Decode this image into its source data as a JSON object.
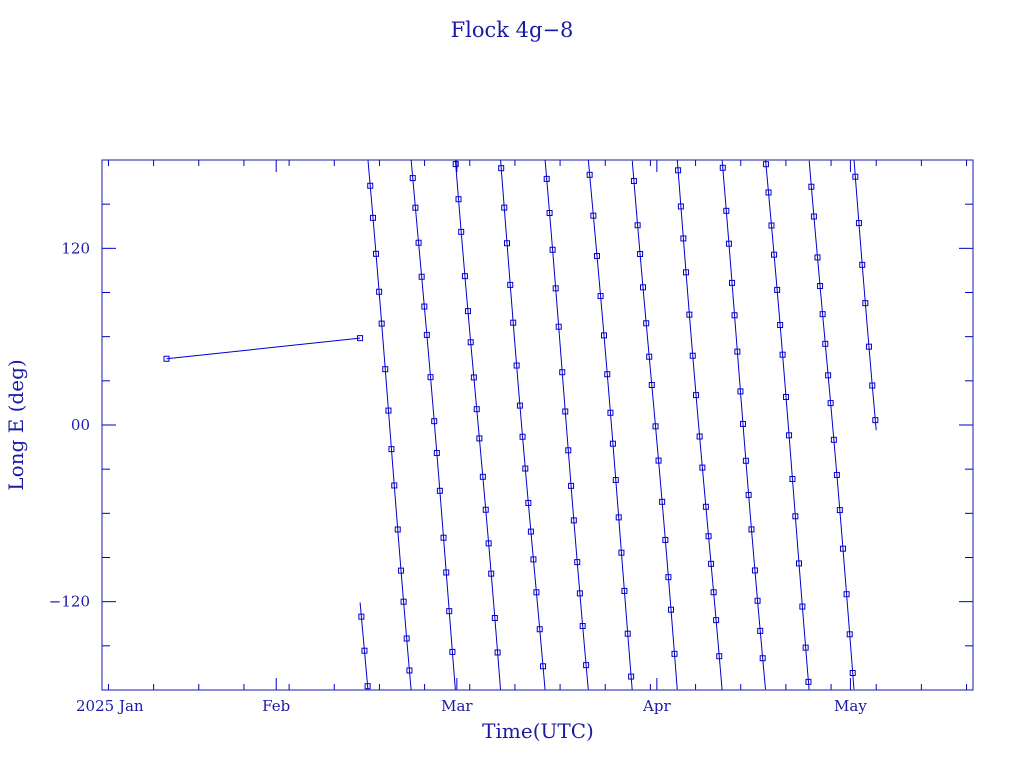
{
  "chart_data": {
    "type": "line",
    "title": "Flock 4g−8",
    "xlabel": "Time(UTC)",
    "ylabel": "Long E (deg)",
    "color": "#0000cc",
    "x_range": [
      "2025-01-05",
      "2025-05-20"
    ],
    "ylim": [
      -180,
      180
    ],
    "x_ticks": [
      {
        "date": "2025-01-01",
        "label": "2025 Jan"
      },
      {
        "date": "2025-02-01",
        "label": "Feb"
      },
      {
        "date": "2025-03-01",
        "label": "Mar"
      },
      {
        "date": "2025-04-01",
        "label": "Apr"
      },
      {
        "date": "2025-05-01",
        "label": "May"
      }
    ],
    "y_ticks": [
      {
        "value": -120,
        "label": "−120"
      },
      {
        "value": 0,
        "label": "00"
      },
      {
        "value": 120,
        "label": "120"
      }
    ],
    "marker": "square",
    "wrap_at": 180,
    "drift_deg_per_day": -52.5,
    "series": [
      {
        "anchors": [
          {
            "date": "2025-01-15",
            "lon": 45
          },
          {
            "date": "2025-02-14",
            "lon": 59
          }
        ],
        "drift_start": "2025-02-14",
        "drift_end": "2025-05-05",
        "drift_start_lon": -120
      }
    ]
  }
}
